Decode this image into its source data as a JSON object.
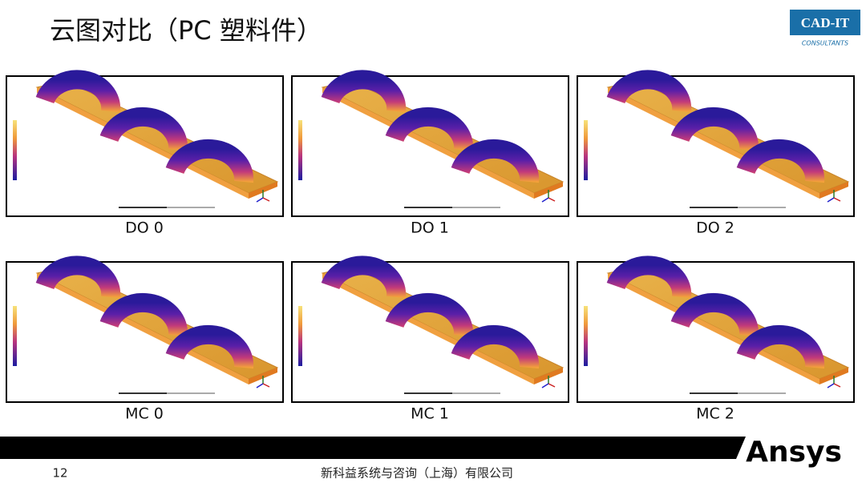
{
  "header": {
    "title": "云图对比（PC 塑料件）"
  },
  "logo": {
    "name": "CAD-IT",
    "tagline": "CONSULTANTS"
  },
  "panels": [
    {
      "label": "DO 0"
    },
    {
      "label": "DO 1"
    },
    {
      "label": "DO 2"
    },
    {
      "label": "MC 0"
    },
    {
      "label": "MC 1"
    },
    {
      "label": "MC 2"
    }
  ],
  "footer": {
    "page_number": "12",
    "company": "新科益系统与咨询（上海）有限公司",
    "brand": "Ansys"
  }
}
